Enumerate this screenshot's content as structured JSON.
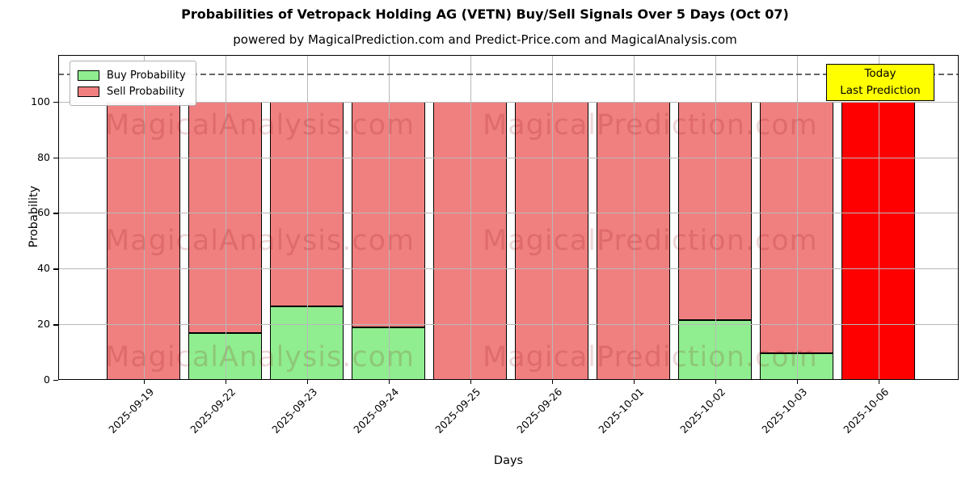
{
  "title": "Probabilities of Vetropack Holding AG (VETN) Buy/Sell Signals Over 5 Days (Oct 07)",
  "subtitle": "powered by MagicalPrediction.com and Predict-Price.com and MagicalAnalysis.com",
  "watermarks": {
    "left_text": "MagicalAnalysis.com",
    "right_text": "MagicalPrediction.com"
  },
  "legend": [
    {
      "label": "Buy Probability",
      "color": "#90ee90"
    },
    {
      "label": "Sell Probability",
      "color": "#f08080"
    }
  ],
  "annotation": {
    "line1": "Today",
    "line2": "Last Prediction",
    "bg_color": "#ffff00"
  },
  "chart_data": {
    "type": "bar",
    "stacked": true,
    "title": "Probabilities of Vetropack Holding AG (VETN) Buy/Sell Signals Over 5 Days (Oct 07)",
    "xlabel": "Days",
    "ylabel": "Probability",
    "categories": [
      "2025-09-19",
      "2025-09-22",
      "2025-09-23",
      "2025-09-24",
      "2025-09-25",
      "2025-09-26",
      "2025-10-01",
      "2025-10-02",
      "2025-10-03",
      "2025-10-06"
    ],
    "series": [
      {
        "name": "Buy Probability",
        "color": "#90ee90",
        "values": [
          0,
          17,
          26.5,
          19,
          0,
          0,
          0,
          21.5,
          9.5,
          0
        ]
      },
      {
        "name": "Sell Probability",
        "color": "#f08080",
        "values": [
          100,
          83,
          73.5,
          81,
          100,
          100,
          100,
          78.5,
          90.5,
          100
        ]
      }
    ],
    "highlight_index": 9,
    "highlight_color": "#ff0000",
    "yticks": [
      0,
      20,
      40,
      60,
      80,
      100
    ],
    "ylim": [
      0,
      116.8
    ],
    "dashed_line_y": 110,
    "grid": true,
    "legend_position": "upper left"
  }
}
